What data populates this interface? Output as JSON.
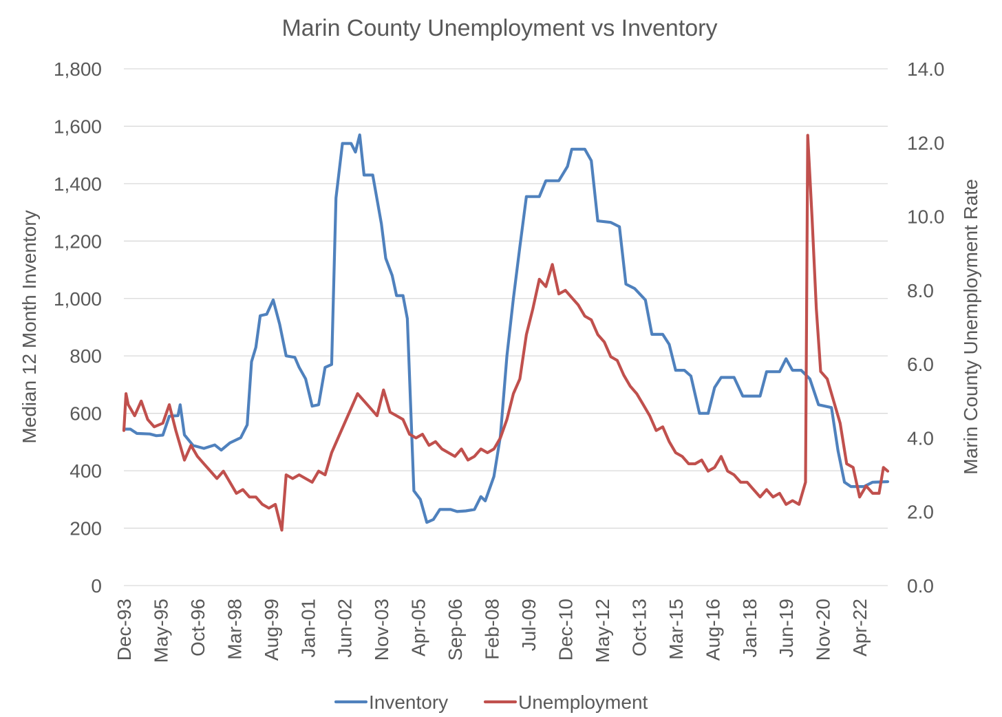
{
  "chart_data": {
    "type": "line",
    "title": "Marin County Unemployment vs Inventory",
    "y_left": {
      "label": "Median 12 Month Inventory",
      "min": 0,
      "max": 1800,
      "ticks": [
        "0",
        "200",
        "400",
        "600",
        "800",
        "1,000",
        "1,200",
        "1,400",
        "1,600",
        "1,800"
      ]
    },
    "y_right": {
      "label": "Marin County Unemployment Rate",
      "min": 0,
      "max": 14,
      "ticks": [
        "0.0",
        "2.0",
        "4.0",
        "6.0",
        "8.0",
        "10.0",
        "12.0",
        "14.0"
      ]
    },
    "x": {
      "start": "1993-12",
      "end": "2023-05",
      "tick_labels": [
        "Dec-93",
        "May-95",
        "Oct-96",
        "Mar-98",
        "Aug-99",
        "Jan-01",
        "Jun-02",
        "Nov-03",
        "Apr-05",
        "Sep-06",
        "Feb-08",
        "Jul-09",
        "Dec-10",
        "May-12",
        "Oct-13",
        "Mar-15",
        "Aug-16",
        "Jan-18",
        "Jun-19",
        "Nov-20",
        "Apr-22"
      ]
    },
    "grid": true,
    "legend_position": "bottom",
    "colors": {
      "inventory": "#4F81BD",
      "unemployment": "#C0504D",
      "grid": "#D9D9D9",
      "text": "#595959"
    },
    "series": [
      {
        "name": "Inventory",
        "axis": "left",
        "points": [
          [
            "1993-12",
            545
          ],
          [
            "1994-03",
            545
          ],
          [
            "1994-06",
            530
          ],
          [
            "1994-12",
            528
          ],
          [
            "1995-03",
            522
          ],
          [
            "1995-06",
            524
          ],
          [
            "1995-09",
            590
          ],
          [
            "1996-01",
            592
          ],
          [
            "1996-02",
            630
          ],
          [
            "1996-04",
            525
          ],
          [
            "1996-08",
            488
          ],
          [
            "1997-01",
            478
          ],
          [
            "1997-06",
            490
          ],
          [
            "1997-09",
            472
          ],
          [
            "1998-01",
            497
          ],
          [
            "1998-06",
            515
          ],
          [
            "1998-09",
            560
          ],
          [
            "1998-11",
            780
          ],
          [
            "1999-01",
            830
          ],
          [
            "1999-03",
            940
          ],
          [
            "1999-06",
            945
          ],
          [
            "1999-09",
            995
          ],
          [
            "1999-12",
            910
          ],
          [
            "2000-03",
            800
          ],
          [
            "2000-07",
            795
          ],
          [
            "2000-09",
            760
          ],
          [
            "2000-12",
            720
          ],
          [
            "2001-03",
            625
          ],
          [
            "2001-06",
            630
          ],
          [
            "2001-09",
            760
          ],
          [
            "2001-12",
            770
          ],
          [
            "2002-02",
            1350
          ],
          [
            "2002-05",
            1540
          ],
          [
            "2002-09",
            1540
          ],
          [
            "2002-11",
            1510
          ],
          [
            "2003-01",
            1570
          ],
          [
            "2003-03",
            1430
          ],
          [
            "2003-07",
            1430
          ],
          [
            "2003-11",
            1260
          ],
          [
            "2004-01",
            1140
          ],
          [
            "2004-04",
            1080
          ],
          [
            "2004-06",
            1010
          ],
          [
            "2004-09",
            1010
          ],
          [
            "2004-11",
            930
          ],
          [
            "2005-02",
            330
          ],
          [
            "2005-05",
            300
          ],
          [
            "2005-08",
            220
          ],
          [
            "2005-11",
            230
          ],
          [
            "2006-02",
            265
          ],
          [
            "2006-07",
            265
          ],
          [
            "2006-10",
            258
          ],
          [
            "2007-02",
            260
          ],
          [
            "2007-06",
            265
          ],
          [
            "2007-09",
            310
          ],
          [
            "2007-11",
            295
          ],
          [
            "2008-03",
            380
          ],
          [
            "2008-06",
            520
          ],
          [
            "2008-09",
            800
          ],
          [
            "2008-12",
            1000
          ],
          [
            "2009-03",
            1180
          ],
          [
            "2009-06",
            1355
          ],
          [
            "2009-09",
            1355
          ],
          [
            "2009-12",
            1355
          ],
          [
            "2010-03",
            1410
          ],
          [
            "2010-09",
            1410
          ],
          [
            "2011-01",
            1460
          ],
          [
            "2011-03",
            1520
          ],
          [
            "2011-09",
            1520
          ],
          [
            "2011-12",
            1480
          ],
          [
            "2012-03",
            1270
          ],
          [
            "2012-09",
            1265
          ],
          [
            "2013-01",
            1250
          ],
          [
            "2013-04",
            1050
          ],
          [
            "2013-08",
            1035
          ],
          [
            "2014-01",
            995
          ],
          [
            "2014-04",
            875
          ],
          [
            "2014-09",
            875
          ],
          [
            "2014-12",
            840
          ],
          [
            "2015-03",
            750
          ],
          [
            "2015-07",
            750
          ],
          [
            "2015-10",
            730
          ],
          [
            "2016-02",
            600
          ],
          [
            "2016-06",
            600
          ],
          [
            "2016-09",
            690
          ],
          [
            "2016-12",
            725
          ],
          [
            "2017-06",
            725
          ],
          [
            "2017-10",
            660
          ],
          [
            "2018-06",
            660
          ],
          [
            "2018-09",
            745
          ],
          [
            "2019-03",
            745
          ],
          [
            "2019-06",
            790
          ],
          [
            "2019-09",
            750
          ],
          [
            "2020-01",
            750
          ],
          [
            "2020-05",
            720
          ],
          [
            "2020-09",
            630
          ],
          [
            "2021-03",
            620
          ],
          [
            "2021-06",
            470
          ],
          [
            "2021-09",
            360
          ],
          [
            "2021-12",
            345
          ],
          [
            "2022-06",
            345
          ],
          [
            "2022-10",
            360
          ],
          [
            "2023-05",
            362
          ]
        ]
      },
      {
        "name": "Unemployment",
        "axis": "right",
        "points": [
          [
            "1993-12",
            4.2
          ],
          [
            "1994-01",
            5.2
          ],
          [
            "1994-02",
            4.9
          ],
          [
            "1994-05",
            4.6
          ],
          [
            "1994-08",
            5.0
          ],
          [
            "1994-11",
            4.5
          ],
          [
            "1995-02",
            4.3
          ],
          [
            "1995-06",
            4.4
          ],
          [
            "1995-09",
            4.9
          ],
          [
            "1995-12",
            4.2
          ],
          [
            "1996-04",
            3.4
          ],
          [
            "1996-07",
            3.8
          ],
          [
            "1996-10",
            3.5
          ],
          [
            "1997-01",
            3.3
          ],
          [
            "1997-04",
            3.1
          ],
          [
            "1997-07",
            2.9
          ],
          [
            "1997-10",
            3.1
          ],
          [
            "1998-01",
            2.8
          ],
          [
            "1998-04",
            2.5
          ],
          [
            "1998-07",
            2.6
          ],
          [
            "1998-10",
            2.4
          ],
          [
            "1999-01",
            2.4
          ],
          [
            "1999-04",
            2.2
          ],
          [
            "1999-07",
            2.1
          ],
          [
            "1999-10",
            2.2
          ],
          [
            "2000-01",
            1.5
          ],
          [
            "2000-03",
            3.0
          ],
          [
            "2000-06",
            2.9
          ],
          [
            "2000-09",
            3.0
          ],
          [
            "2000-12",
            2.9
          ],
          [
            "2001-03",
            2.8
          ],
          [
            "2001-06",
            3.1
          ],
          [
            "2001-09",
            3.0
          ],
          [
            "2001-12",
            3.6
          ],
          [
            "2002-03",
            4.0
          ],
          [
            "2002-06",
            4.4
          ],
          [
            "2002-09",
            4.8
          ],
          [
            "2002-12",
            5.2
          ],
          [
            "2003-03",
            5.0
          ],
          [
            "2003-06",
            4.8
          ],
          [
            "2003-09",
            4.6
          ],
          [
            "2003-12",
            5.3
          ],
          [
            "2004-03",
            4.7
          ],
          [
            "2004-06",
            4.6
          ],
          [
            "2004-09",
            4.5
          ],
          [
            "2004-12",
            4.1
          ],
          [
            "2005-03",
            4.0
          ],
          [
            "2005-06",
            4.1
          ],
          [
            "2005-09",
            3.8
          ],
          [
            "2005-12",
            3.9
          ],
          [
            "2006-03",
            3.7
          ],
          [
            "2006-06",
            3.6
          ],
          [
            "2006-09",
            3.5
          ],
          [
            "2006-12",
            3.7
          ],
          [
            "2007-03",
            3.4
          ],
          [
            "2007-06",
            3.5
          ],
          [
            "2007-09",
            3.7
          ],
          [
            "2007-12",
            3.6
          ],
          [
            "2008-03",
            3.7
          ],
          [
            "2008-06",
            4.0
          ],
          [
            "2008-09",
            4.5
          ],
          [
            "2008-12",
            5.2
          ],
          [
            "2009-03",
            5.6
          ],
          [
            "2009-06",
            6.8
          ],
          [
            "2009-09",
            7.5
          ],
          [
            "2009-12",
            8.3
          ],
          [
            "2010-03",
            8.1
          ],
          [
            "2010-06",
            8.7
          ],
          [
            "2010-09",
            7.9
          ],
          [
            "2010-12",
            8.0
          ],
          [
            "2011-03",
            7.8
          ],
          [
            "2011-06",
            7.6
          ],
          [
            "2011-09",
            7.3
          ],
          [
            "2011-12",
            7.2
          ],
          [
            "2012-03",
            6.8
          ],
          [
            "2012-06",
            6.6
          ],
          [
            "2012-09",
            6.2
          ],
          [
            "2012-12",
            6.1
          ],
          [
            "2013-03",
            5.7
          ],
          [
            "2013-06",
            5.4
          ],
          [
            "2013-09",
            5.2
          ],
          [
            "2013-12",
            4.9
          ],
          [
            "2014-03",
            4.6
          ],
          [
            "2014-06",
            4.2
          ],
          [
            "2014-09",
            4.3
          ],
          [
            "2014-12",
            3.9
          ],
          [
            "2015-03",
            3.6
          ],
          [
            "2015-06",
            3.5
          ],
          [
            "2015-09",
            3.3
          ],
          [
            "2015-12",
            3.3
          ],
          [
            "2016-03",
            3.4
          ],
          [
            "2016-06",
            3.1
          ],
          [
            "2016-09",
            3.2
          ],
          [
            "2016-12",
            3.5
          ],
          [
            "2017-03",
            3.1
          ],
          [
            "2017-06",
            3.0
          ],
          [
            "2017-09",
            2.8
          ],
          [
            "2017-12",
            2.8
          ],
          [
            "2018-03",
            2.6
          ],
          [
            "2018-06",
            2.4
          ],
          [
            "2018-09",
            2.6
          ],
          [
            "2018-12",
            2.4
          ],
          [
            "2019-03",
            2.5
          ],
          [
            "2019-06",
            2.2
          ],
          [
            "2019-09",
            2.3
          ],
          [
            "2019-12",
            2.2
          ],
          [
            "2020-03",
            2.8
          ],
          [
            "2020-04",
            12.2
          ],
          [
            "2020-06",
            10.0
          ],
          [
            "2020-08",
            7.5
          ],
          [
            "2020-10",
            5.8
          ],
          [
            "2021-01",
            5.6
          ],
          [
            "2021-04",
            5.0
          ],
          [
            "2021-07",
            4.4
          ],
          [
            "2021-10",
            3.3
          ],
          [
            "2022-01",
            3.2
          ],
          [
            "2022-04",
            2.4
          ],
          [
            "2022-07",
            2.7
          ],
          [
            "2022-10",
            2.5
          ],
          [
            "2023-01",
            2.5
          ],
          [
            "2023-03",
            3.2
          ],
          [
            "2023-05",
            3.1
          ]
        ]
      }
    ]
  }
}
